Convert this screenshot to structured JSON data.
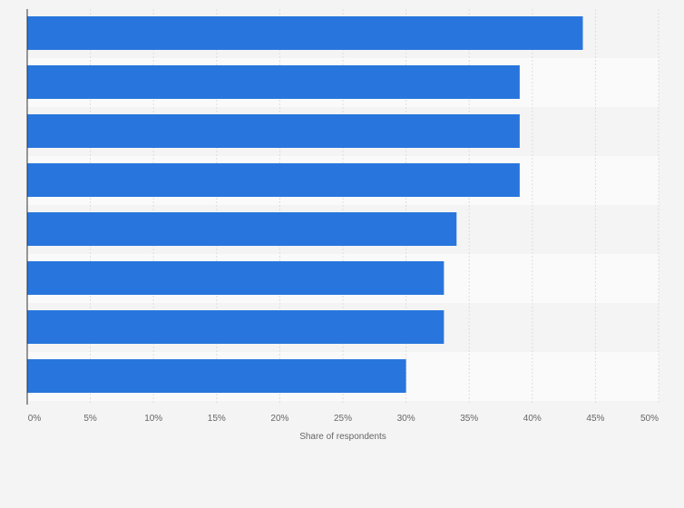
{
  "chart_data": {
    "type": "bar",
    "orientation": "horizontal",
    "categories": [
      "",
      "",
      "",
      "",
      "",
      "",
      "",
      ""
    ],
    "values": [
      44,
      39,
      39,
      39,
      34,
      33,
      33,
      30
    ],
    "xlabel": "Share of respondents",
    "ylabel": "",
    "xlim": [
      0,
      50
    ],
    "xticks": [
      0,
      5,
      10,
      15,
      20,
      25,
      30,
      35,
      40,
      45,
      50
    ],
    "xtick_labels": [
      "0%",
      "5%",
      "10%",
      "15%",
      "20%",
      "25%",
      "30%",
      "35%",
      "40%",
      "45%",
      "50%"
    ],
    "grid": true,
    "legend": "none",
    "colors": {
      "bar": "#2876dd",
      "background": "#f4f4f4",
      "band": "#fafafa",
      "grid": "#dddddd",
      "axis": "#333333",
      "text": "#666666"
    }
  }
}
